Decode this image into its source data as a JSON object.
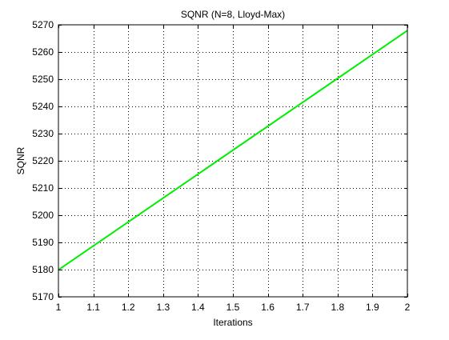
{
  "chart_data": {
    "type": "line",
    "title": "SQNR (N=8, Lloyd-Max)",
    "xlabel": "Iterations",
    "ylabel": "SQNR",
    "xlim": [
      1,
      2
    ],
    "ylim": [
      5170,
      5270
    ],
    "xticks": [
      1,
      1.1,
      1.2,
      1.3,
      1.4,
      1.5,
      1.6,
      1.7,
      1.8,
      1.9,
      2
    ],
    "xtick_labels": [
      "1",
      "1.1",
      "1.2",
      "1.3",
      "1.4",
      "1.5",
      "1.6",
      "1.7",
      "1.8",
      "1.9",
      "2"
    ],
    "yticks": [
      5170,
      5180,
      5190,
      5200,
      5210,
      5220,
      5230,
      5240,
      5250,
      5260,
      5270
    ],
    "ytick_labels": [
      "5170",
      "5180",
      "5190",
      "5200",
      "5210",
      "5220",
      "5230",
      "5240",
      "5250",
      "5260",
      "5270"
    ],
    "grid": true,
    "series": [
      {
        "color": "#00ee00",
        "x": [
          1,
          2
        ],
        "y": [
          5179.9,
          5267.9
        ]
      }
    ]
  }
}
